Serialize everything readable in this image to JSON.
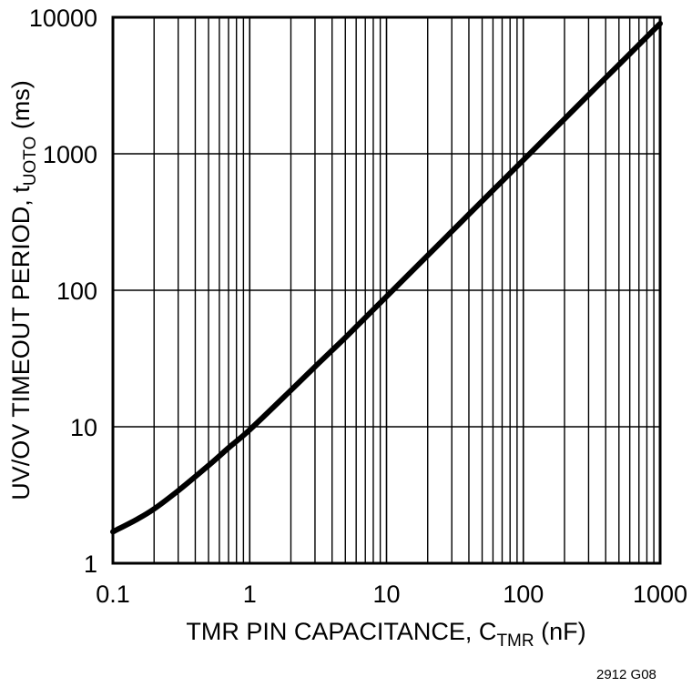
{
  "chart_data": {
    "type": "line",
    "title": "",
    "xlabel": "TMR PIN CAPACITANCE, C_TMR (nF)",
    "xlabel_main": "TMR PIN CAPACITANCE, C",
    "xlabel_sub": "TMR",
    "xlabel_unit": " (nF)",
    "ylabel": "UV/OV TIMEOUT PERIOD, t_UOTO (ms)",
    "ylabel_main": "UV/OV TIMEOUT PERIOD, t",
    "ylabel_sub": "UOTO",
    "ylabel_unit": " (ms)",
    "xscale": "log",
    "yscale": "log",
    "xlim": [
      0.1,
      1000
    ],
    "ylim": [
      1,
      10000
    ],
    "x_tick_labels": [
      "0.1",
      "1",
      "10",
      "100",
      "1000"
    ],
    "y_tick_labels": [
      "1",
      "10",
      "100",
      "1000",
      "10000"
    ],
    "grid": true,
    "legend": null,
    "series": [
      {
        "name": "t_UOTO",
        "x": [
          0.1,
          0.15,
          0.2,
          0.3,
          0.5,
          0.7,
          1,
          2,
          3,
          5,
          7,
          10,
          20,
          30,
          50,
          70,
          100,
          200,
          300,
          500,
          700,
          1000
        ],
        "y": [
          1.7,
          2.1,
          2.5,
          3.4,
          5.2,
          7.0,
          9.5,
          18.5,
          27.5,
          45,
          63,
          90,
          180,
          270,
          450,
          630,
          900,
          1800,
          2700,
          4500,
          6300,
          9000
        ]
      }
    ]
  },
  "figure_id": "2912 G08"
}
